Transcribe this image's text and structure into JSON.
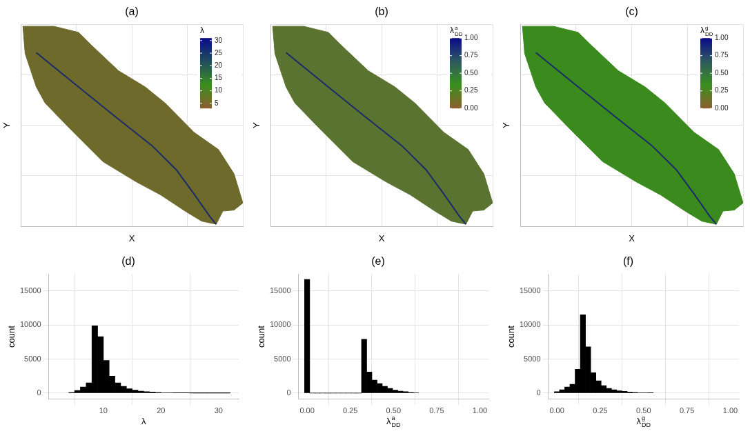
{
  "chart_data": [
    {
      "type": "map",
      "title": "(a)",
      "x_label": {
        "text": "X"
      },
      "y_label": {
        "text": "Y"
      },
      "xlim": [
        0,
        100
      ],
      "ylim": [
        0,
        100
      ],
      "xticks": [
        0,
        25,
        50,
        75,
        100
      ],
      "yticks": [
        0,
        25,
        50,
        75,
        100
      ],
      "grid": true,
      "tick_labels": false,
      "series": [
        {
          "type": "area",
          "color": "#6e6a2c",
          "x": [
            1,
            15,
            26,
            31.5,
            44,
            56,
            65,
            78,
            89,
            96,
            100,
            96,
            91,
            88,
            81.5,
            74,
            63,
            52,
            37,
            22,
            11,
            7,
            2,
            1
          ],
          "y": [
            99,
            99,
            96,
            90,
            77,
            69,
            61,
            46.5,
            38,
            26,
            11.5,
            8,
            7.5,
            1,
            2.5,
            7.5,
            15.5,
            22,
            32,
            48.5,
            61,
            69,
            85.5,
            99
          ]
        },
        {
          "type": "line",
          "color": "#1b2a6b",
          "x": [
            7,
            26,
            44,
            59,
            70,
            78,
            85,
            88
          ],
          "y": [
            86,
            69,
            53,
            40,
            28,
            16,
            5,
            1
          ]
        }
      ],
      "colorbar": {
        "title": {
          "text": "λ"
        },
        "range": [
          3,
          31
        ],
        "ticks": [
          5,
          10,
          15,
          20,
          25,
          30
        ],
        "colors": [
          "#8b5e2e",
          "#3a8f1f",
          "#1f4e5f",
          "#0a0a8a"
        ]
      }
    },
    {
      "type": "map",
      "title": "(b)",
      "x_label": {
        "text": "X"
      },
      "y_label": {
        "text": "Y"
      },
      "xlim": [
        0,
        100
      ],
      "ylim": [
        0,
        100
      ],
      "xticks": [
        0,
        25,
        50,
        75,
        100
      ],
      "yticks": [
        0,
        25,
        50,
        75,
        100
      ],
      "grid": true,
      "tick_labels": false,
      "series": [
        {
          "type": "area",
          "color": "#5b7330",
          "x": [
            1,
            15,
            26,
            31.5,
            44,
            56,
            65,
            78,
            89,
            96,
            100,
            96,
            91,
            88,
            81.5,
            74,
            63,
            52,
            37,
            22,
            11,
            7,
            2,
            1
          ],
          "y": [
            99,
            99,
            96,
            90,
            77,
            69,
            61,
            46.5,
            38,
            26,
            11.5,
            8,
            7.5,
            1,
            2.5,
            7.5,
            15.5,
            22,
            32,
            48.5,
            61,
            69,
            85.5,
            99
          ]
        },
        {
          "type": "line",
          "color": "#1b2a6b",
          "x": [
            7,
            26,
            44,
            59,
            70,
            78,
            85,
            88
          ],
          "y": [
            86,
            69,
            53,
            40,
            28,
            16,
            5,
            1
          ]
        }
      ],
      "colorbar": {
        "title": {
          "text": "λ",
          "sup": "a",
          "sub": "DD"
        },
        "range": [
          0,
          1
        ],
        "ticks": [
          {
            "value": 0,
            "label": "0.00"
          },
          {
            "value": 0.25,
            "label": "0.25"
          },
          {
            "value": 0.5,
            "label": "0.50"
          },
          {
            "value": 0.75,
            "label": "0.75"
          },
          {
            "value": 1,
            "label": "1.00"
          }
        ],
        "colors": [
          "#8b5e2e",
          "#3a8f1f",
          "#2f5a5f",
          "#0a0a8a"
        ]
      }
    },
    {
      "type": "map",
      "title": "(c)",
      "x_label": {
        "text": "X"
      },
      "y_label": {
        "text": "Y"
      },
      "xlim": [
        0,
        100
      ],
      "ylim": [
        0,
        100
      ],
      "xticks": [
        0,
        25,
        50,
        75,
        100
      ],
      "yticks": [
        0,
        25,
        50,
        75,
        100
      ],
      "grid": true,
      "tick_labels": false,
      "series": [
        {
          "type": "area",
          "color": "#3a8a1e",
          "x": [
            1,
            15,
            26,
            31.5,
            44,
            56,
            65,
            78,
            89,
            96,
            100,
            96,
            91,
            88,
            81.5,
            74,
            63,
            52,
            37,
            22,
            11,
            7,
            2,
            1
          ],
          "y": [
            99,
            99,
            96,
            90,
            77,
            69,
            61,
            46.5,
            38,
            26,
            11.5,
            8,
            7.5,
            1,
            2.5,
            7.5,
            15.5,
            22,
            32,
            48.5,
            61,
            69,
            85.5,
            99
          ]
        },
        {
          "type": "line",
          "color": "#1b2a6b",
          "x": [
            7,
            26,
            44,
            59,
            70,
            78,
            85,
            88
          ],
          "y": [
            86,
            69,
            53,
            40,
            28,
            16,
            5,
            1
          ]
        }
      ],
      "colorbar": {
        "title": {
          "text": "λ",
          "sup": "g",
          "sub": "DD"
        },
        "range": [
          0,
          1
        ],
        "ticks": [
          {
            "value": 0,
            "label": "0.00"
          },
          {
            "value": 0.25,
            "label": "0.25"
          },
          {
            "value": 0.5,
            "label": "0.50"
          },
          {
            "value": 0.75,
            "label": "0.75"
          },
          {
            "value": 1,
            "label": "1.00"
          }
        ],
        "colors": [
          "#8b5e2e",
          "#3a8f1f",
          "#2f5a5f",
          "#0a0a8a"
        ]
      }
    },
    {
      "type": "histogram",
      "title": "(d)",
      "x_label": {
        "text": "λ"
      },
      "y_label": {
        "text": "count"
      },
      "xlim": [
        0.5,
        33.5
      ],
      "ylim": [
        -900,
        17500
      ],
      "xticks": [
        10,
        20,
        30
      ],
      "yticks": [
        0,
        5000,
        10000,
        15000
      ],
      "grid": true,
      "color": "#000000",
      "bins": [
        4,
        5,
        6,
        7,
        8,
        9,
        10,
        11,
        12,
        13,
        14,
        15,
        16,
        17,
        18,
        19,
        20,
        21,
        22,
        23,
        24,
        25,
        26,
        27,
        28,
        29,
        30,
        31,
        32
      ],
      "values": [
        100,
        400,
        900,
        1500,
        9900,
        8300,
        4800,
        2500,
        1500,
        1000,
        650,
        450,
        300,
        220,
        150,
        100,
        70,
        50,
        35,
        25,
        18,
        12,
        8,
        6,
        4,
        3,
        2,
        1
      ]
    },
    {
      "type": "histogram",
      "title": "(e)",
      "x_label": {
        "text": "λ",
        "sup": "a",
        "sub": "DD"
      },
      "y_label": {
        "text": "count"
      },
      "xlim": [
        -0.05,
        1.05
      ],
      "ylim": [
        -900,
        17500
      ],
      "xticks": [
        {
          "value": 0,
          "label": "0.00"
        },
        {
          "value": 0.25,
          "label": "0.25"
        },
        {
          "value": 0.5,
          "label": "0.50"
        },
        {
          "value": 0.75,
          "label": "0.75"
        },
        {
          "value": 1,
          "label": "1.00"
        }
      ],
      "yticks": [
        0,
        5000,
        10000,
        15000
      ],
      "grid": true,
      "color": "#000000",
      "bins": [
        -0.015,
        0.015,
        0.045,
        0.075,
        0.105,
        0.135,
        0.165,
        0.195,
        0.225,
        0.255,
        0.285,
        0.315,
        0.345,
        0.375,
        0.405,
        0.435,
        0.465,
        0.495,
        0.525,
        0.555,
        0.585,
        0.615,
        0.645
      ],
      "values": [
        16700,
        0,
        0,
        0,
        0,
        0,
        0,
        0,
        0,
        0,
        0,
        7900,
        3100,
        1900,
        1400,
        1000,
        700,
        450,
        300,
        200,
        120,
        60
      ]
    },
    {
      "type": "histogram",
      "title": "(f)",
      "x_label": {
        "text": "λ",
        "sup": "g",
        "sub": "DD"
      },
      "y_label": {
        "text": "count"
      },
      "xlim": [
        -0.05,
        1.05
      ],
      "ylim": [
        -900,
        17500
      ],
      "xticks": [
        {
          "value": 0,
          "label": "0.00"
        },
        {
          "value": 0.25,
          "label": "0.25"
        },
        {
          "value": 0.5,
          "label": "0.50"
        },
        {
          "value": 0.75,
          "label": "0.75"
        },
        {
          "value": 1,
          "label": "1.00"
        }
      ],
      "yticks": [
        0,
        5000,
        10000,
        15000
      ],
      "grid": true,
      "color": "#000000",
      "bins": [
        -0.015,
        0.015,
        0.045,
        0.075,
        0.105,
        0.135,
        0.165,
        0.195,
        0.225,
        0.255,
        0.285,
        0.315,
        0.345,
        0.375,
        0.405,
        0.435,
        0.465,
        0.495,
        0.525,
        0.555
      ],
      "values": [
        200,
        500,
        900,
        1300,
        3500,
        11500,
        6800,
        3000,
        1800,
        1100,
        700,
        500,
        350,
        250,
        150,
        100,
        60,
        40,
        20
      ]
    }
  ]
}
